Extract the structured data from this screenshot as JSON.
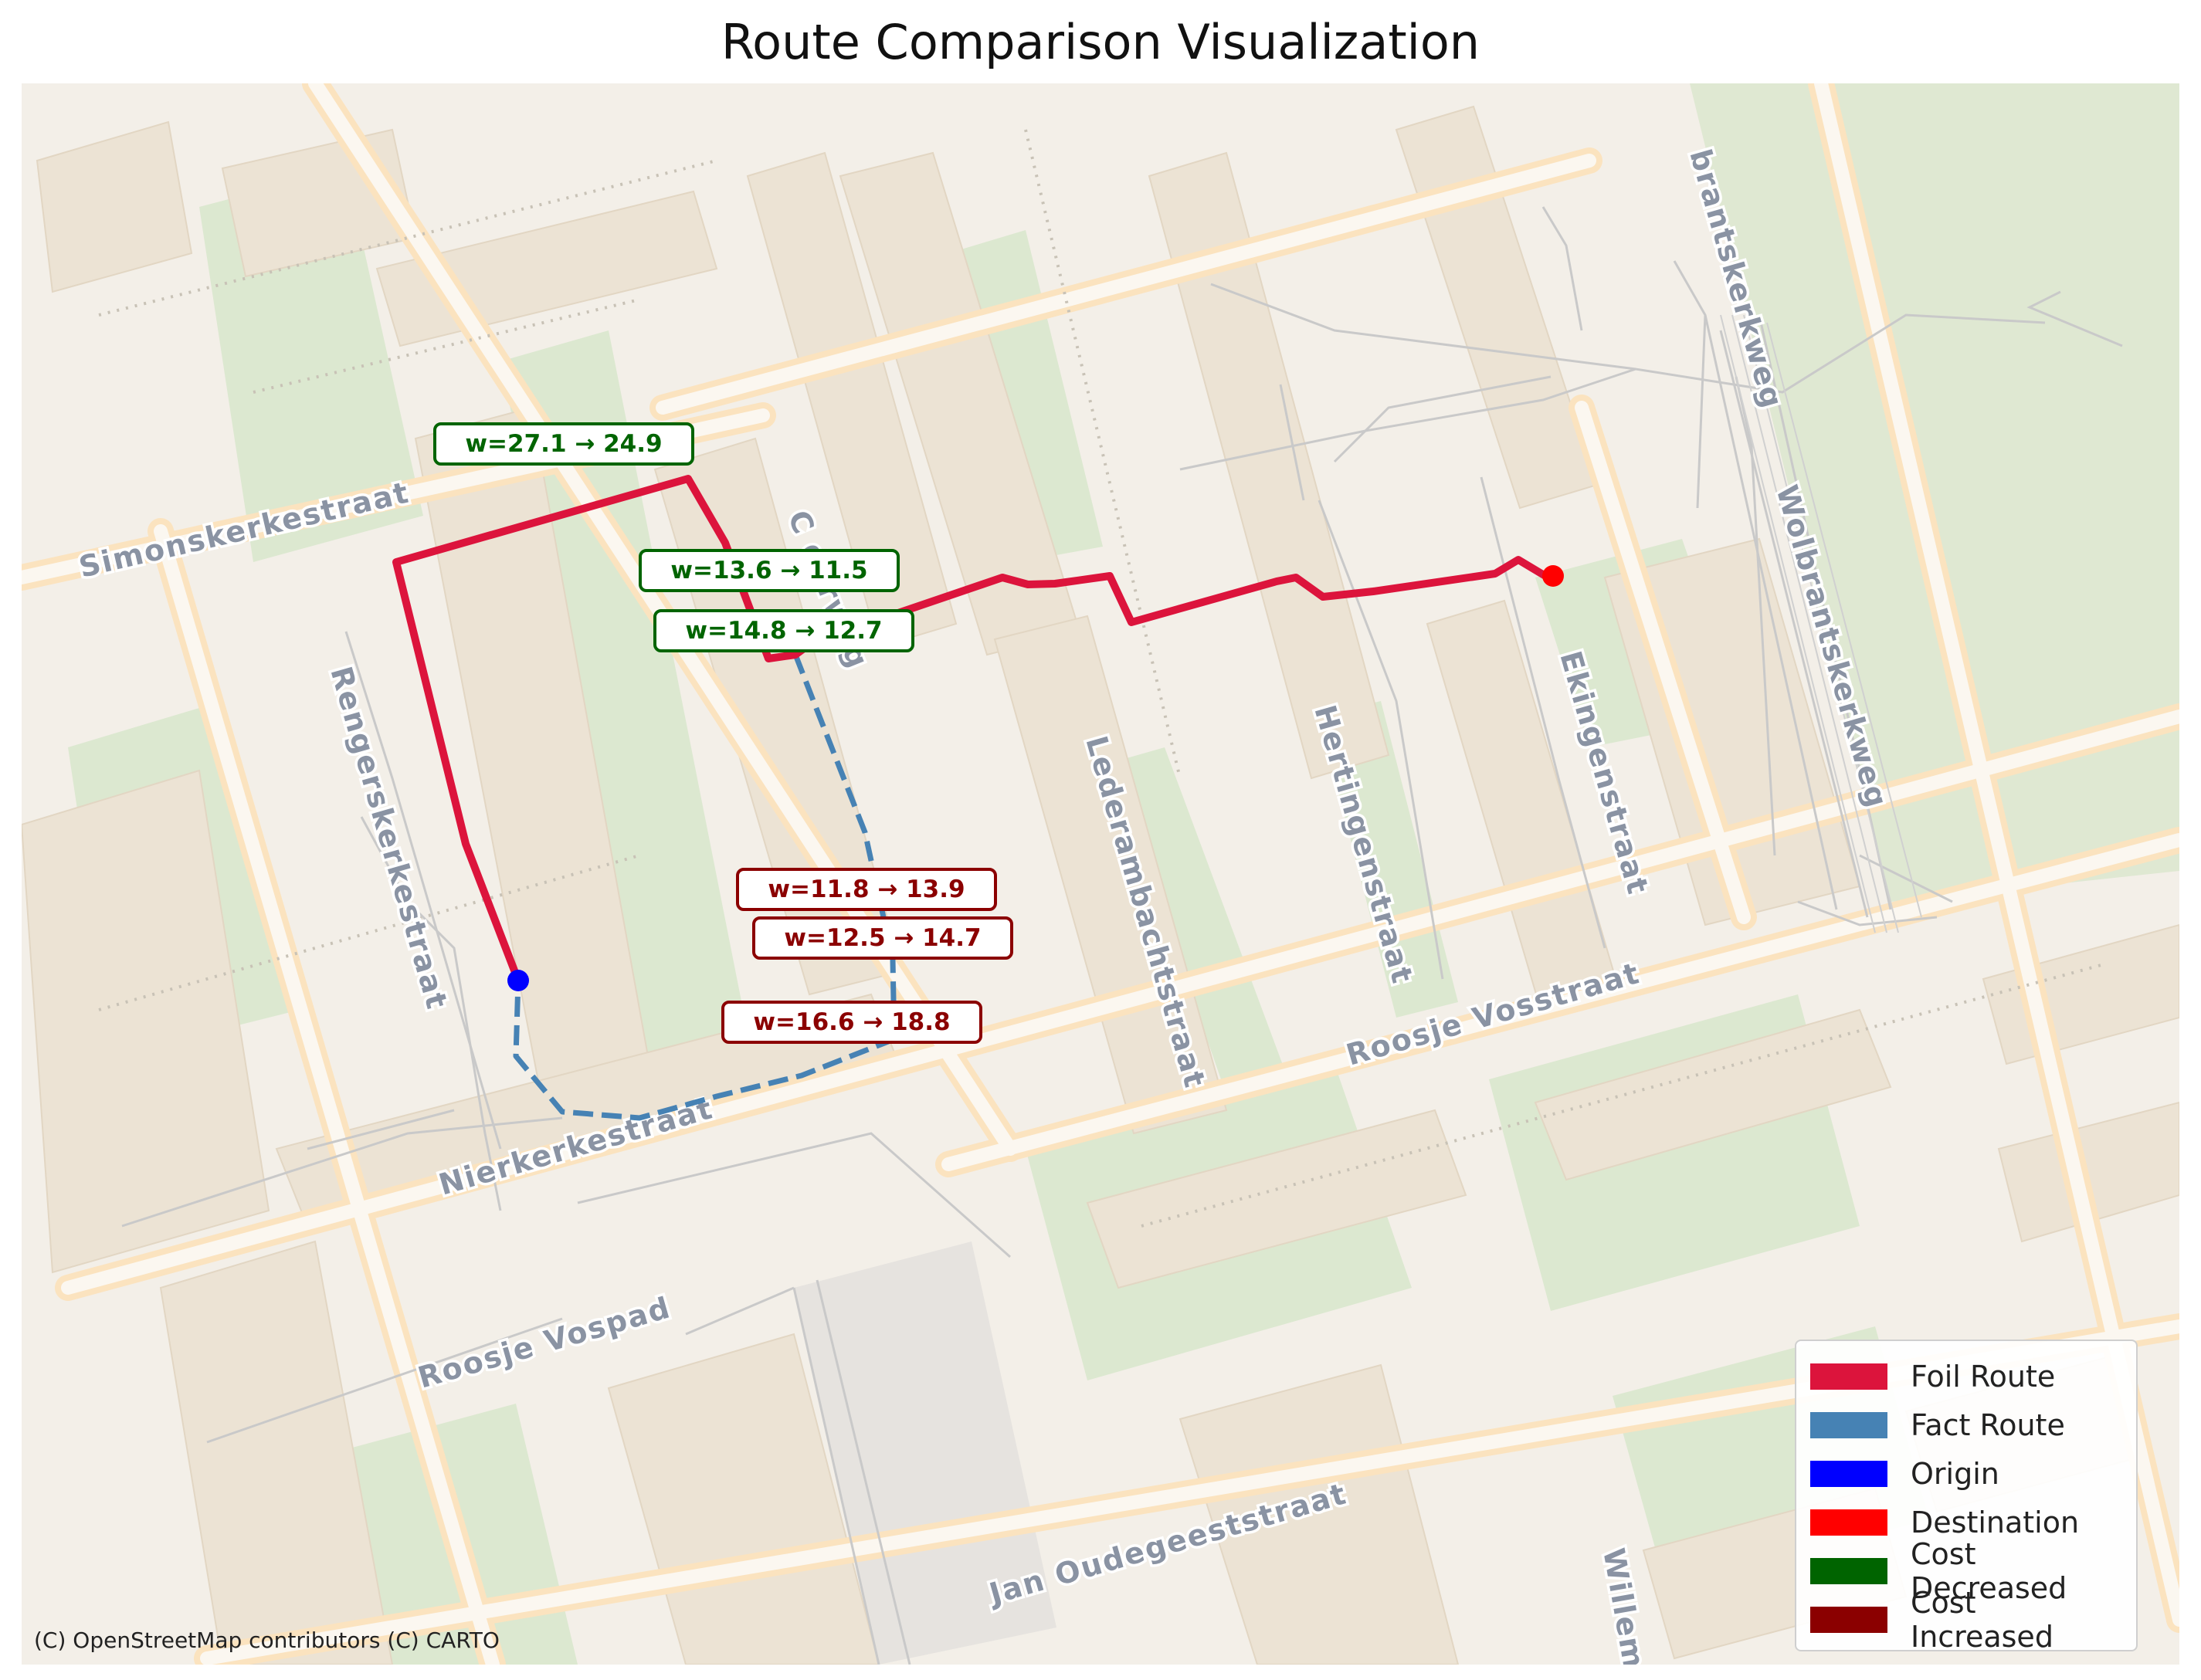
{
  "title": "Route Comparison Visualization",
  "attribution": "(C) OpenStreetMap contributors (C) CARTO",
  "colors": {
    "foil_route": "#dc143c",
    "fact_route": "#4682b4",
    "origin": "#0000ff",
    "destination": "#ff0000",
    "cost_decreased": "#006400",
    "cost_increased": "#8b0000"
  },
  "street_labels": [
    {
      "id": "simonskerkestraat",
      "text": "Simonskerkestraat"
    },
    {
      "id": "rengerskerkestraat",
      "text": "Rengerskerkestraat"
    },
    {
      "id": "nierkerkestraat",
      "text": "Nierkerkestraat"
    },
    {
      "id": "roosje-vospad",
      "text": "Roosje Vospad"
    },
    {
      "id": "roosje-vosstraat",
      "text": "Roosje Vosstraat"
    },
    {
      "id": "jan-oudegeeststraat",
      "text": "Jan Oudegeeststraat"
    },
    {
      "id": "lederambachtstraat",
      "text": "Lederambachtstraat"
    },
    {
      "id": "hertingenstraat",
      "text": "Hertingenstraat"
    },
    {
      "id": "ekingenstraat",
      "text": "Ekingenstraat"
    },
    {
      "id": "wolbrantskerkweg",
      "text": "Wolbrantskerkweg"
    },
    {
      "id": "wolbrantskerkweg-top",
      "text": "brantskerkweg"
    },
    {
      "id": "willem",
      "text": "Willem"
    },
    {
      "id": "c-derweg",
      "text": "C           derweg"
    }
  ],
  "edge_labels": [
    {
      "id": "w1",
      "text": "w=27.1 → 24.9",
      "change": "decreased"
    },
    {
      "id": "w2",
      "text": "w=13.6 → 11.5",
      "change": "decreased"
    },
    {
      "id": "w3",
      "text": "w=14.8 → 12.7",
      "change": "decreased"
    },
    {
      "id": "w4",
      "text": "w=11.8 → 13.9",
      "change": "increased"
    },
    {
      "id": "w5",
      "text": "w=12.5 → 14.7",
      "change": "increased"
    },
    {
      "id": "w6",
      "text": "w=16.6 → 18.8",
      "change": "increased"
    }
  ],
  "legend": [
    {
      "label": "Foil Route",
      "color": "#dc143c"
    },
    {
      "label": "Fact Route",
      "color": "#4682b4"
    },
    {
      "label": "Origin",
      "color": "#0000ff"
    },
    {
      "label": "Destination",
      "color": "#ff0000"
    },
    {
      "label": "Cost Decreased",
      "color": "#006400"
    },
    {
      "label": "Cost Increased",
      "color": "#8b0000"
    }
  ]
}
